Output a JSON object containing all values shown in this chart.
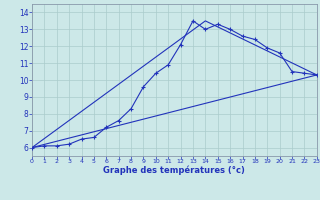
{
  "xlabel": "Graphe des températures (°c)",
  "background_color": "#cce8e8",
  "line_color": "#2233bb",
  "xlim": [
    0,
    23
  ],
  "ylim": [
    5.5,
    14.5
  ],
  "xticks": [
    0,
    1,
    2,
    3,
    4,
    5,
    6,
    7,
    8,
    9,
    10,
    11,
    12,
    13,
    14,
    15,
    16,
    17,
    18,
    19,
    20,
    21,
    22,
    23
  ],
  "yticks": [
    6,
    7,
    8,
    9,
    10,
    11,
    12,
    13,
    14
  ],
  "series1_x": [
    0,
    1,
    2,
    3,
    4,
    5,
    6,
    7,
    8,
    9,
    10,
    11,
    12,
    13,
    14,
    15,
    16,
    17,
    18,
    19,
    20,
    21,
    22,
    23
  ],
  "series1_y": [
    6.0,
    6.1,
    6.1,
    6.2,
    6.5,
    6.6,
    7.2,
    7.6,
    8.3,
    9.6,
    10.4,
    10.9,
    12.1,
    13.5,
    13.0,
    13.3,
    13.0,
    12.6,
    12.4,
    11.9,
    11.6,
    10.5,
    10.4,
    10.3
  ],
  "series2_x": [
    0,
    23
  ],
  "series2_y": [
    6.0,
    10.3
  ],
  "series3_x": [
    0,
    14,
    23
  ],
  "series3_y": [
    6.0,
    13.5,
    10.3
  ],
  "grid_color": "#aacccc",
  "spine_color": "#8899aa"
}
